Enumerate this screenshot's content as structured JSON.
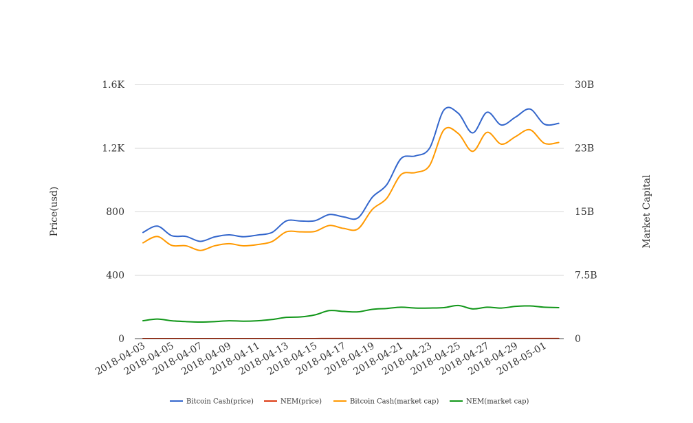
{
  "chart_data": {
    "type": "line",
    "x": [
      "2018-04-03",
      "2018-04-04",
      "2018-04-05",
      "2018-04-06",
      "2018-04-07",
      "2018-04-08",
      "2018-04-09",
      "2018-04-10",
      "2018-04-11",
      "2018-04-12",
      "2018-04-13",
      "2018-04-14",
      "2018-04-15",
      "2018-04-16",
      "2018-04-17",
      "2018-04-18",
      "2018-04-19",
      "2018-04-20",
      "2018-04-21",
      "2018-04-22",
      "2018-04-23",
      "2018-04-24",
      "2018-04-25",
      "2018-04-26",
      "2018-04-27",
      "2018-04-28",
      "2018-04-29",
      "2018-04-30",
      "2018-05-01",
      "2018-05-02"
    ],
    "x_tick_labels": [
      "2018-04-03",
      "2018-04-05",
      "2018-04-07",
      "2018-04-09",
      "2018-04-11",
      "2018-04-13",
      "2018-04-15",
      "2018-04-17",
      "2018-04-19",
      "2018-04-21",
      "2018-04-23",
      "2018-04-25",
      "2018-04-27",
      "2018-04-29",
      "2018-05-01"
    ],
    "y_left": {
      "label": "Price(usd)",
      "ylim": [
        0,
        1600
      ],
      "ticks": [
        0,
        400,
        800,
        1200,
        1600
      ],
      "tick_labels": [
        "0",
        "400",
        "800",
        "1.2K",
        "1.6K"
      ]
    },
    "y_right": {
      "label": "Market Capital",
      "ylim": [
        0,
        30000000000
      ],
      "ticks": [
        0,
        7500000000,
        15000000000,
        22500000000,
        30000000000
      ],
      "tick_labels": [
        "0",
        "7.5B",
        "15B",
        "23B",
        "30B"
      ]
    },
    "grid": true,
    "legend_position": "bottom",
    "series": [
      {
        "name": "Bitcoin Cash(price)",
        "axis": "left",
        "color": "#3366cc",
        "values": [
          668,
          708,
          648,
          643,
          612,
          640,
          653,
          641,
          652,
          668,
          741,
          740,
          742,
          781,
          766,
          760,
          890,
          968,
          1133,
          1150,
          1200,
          1440,
          1418,
          1295,
          1425,
          1345,
          1395,
          1445,
          1350,
          1355
        ]
      },
      {
        "name": "NEM(price)",
        "axis": "left",
        "color": "#dc3912",
        "values": [
          0.23,
          0.24,
          0.23,
          0.22,
          0.22,
          0.22,
          0.23,
          0.22,
          0.23,
          0.24,
          0.26,
          0.26,
          0.28,
          0.32,
          0.31,
          0.31,
          0.34,
          0.35,
          0.37,
          0.36,
          0.36,
          0.37,
          0.4,
          0.36,
          0.37,
          0.37,
          0.39,
          0.4,
          0.39,
          0.38
        ]
      },
      {
        "name": "Bitcoin Cash(market cap)",
        "axis": "right",
        "color": "#ff9900",
        "values": [
          11300000000,
          12050000000,
          11000000000,
          10950000000,
          10400000000,
          10950000000,
          11200000000,
          10950000000,
          11100000000,
          11450000000,
          12600000000,
          12600000000,
          12650000000,
          13350000000,
          13000000000,
          12950000000,
          15250000000,
          16550000000,
          19350000000,
          19600000000,
          20450000000,
          24650000000,
          24200000000,
          22100000000,
          24350000000,
          22950000000,
          23850000000,
          24650000000,
          23050000000,
          23150000000
        ]
      },
      {
        "name": "NEM(market cap)",
        "axis": "right",
        "color": "#109618",
        "values": [
          2100000000,
          2300000000,
          2100000000,
          2000000000,
          1950000000,
          2000000000,
          2100000000,
          2050000000,
          2100000000,
          2250000000,
          2500000000,
          2550000000,
          2800000000,
          3300000000,
          3200000000,
          3150000000,
          3450000000,
          3550000000,
          3700000000,
          3600000000,
          3600000000,
          3650000000,
          3900000000,
          3500000000,
          3700000000,
          3600000000,
          3800000000,
          3850000000,
          3700000000,
          3650000000
        ]
      }
    ]
  }
}
